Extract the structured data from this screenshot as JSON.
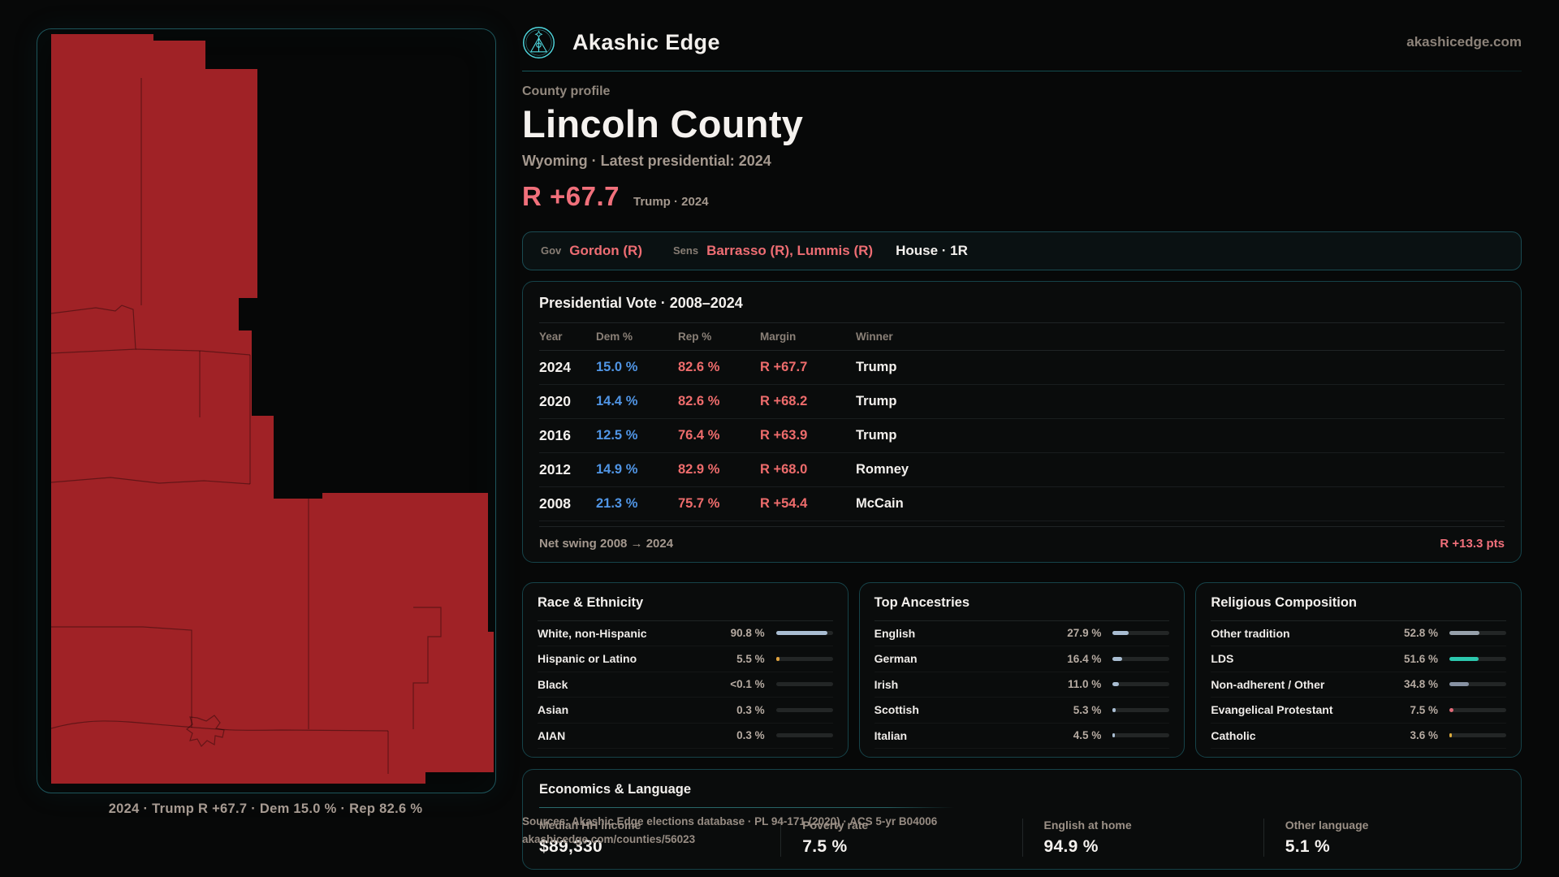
{
  "brand": {
    "name": "Akashic Edge",
    "domain_text": "akashicedge.com"
  },
  "page": {
    "kicker": "County profile",
    "title": "Lincoln County",
    "subtitle": "Wyoming · Latest presidential: 2024",
    "margin_value": "R +67.7",
    "margin_note": "Trump · 2024"
  },
  "officials": {
    "gov_label": "Gov",
    "gov_value": "Gordon (R)",
    "sens_label": "Sens",
    "sens_value": "Barrasso (R), Lummis (R)",
    "house_value": "House · 1R"
  },
  "presidential": {
    "title": "Presidential Vote · 2008–2024",
    "columns": [
      "Year",
      "Dem %",
      "Rep %",
      "Margin",
      "Winner"
    ],
    "rows": [
      {
        "year": "2024",
        "dem": "15.0 %",
        "rep": "82.6 %",
        "margin": "R +67.7",
        "winner": "Trump"
      },
      {
        "year": "2020",
        "dem": "14.4 %",
        "rep": "82.6 %",
        "margin": "R +68.2",
        "winner": "Trump"
      },
      {
        "year": "2016",
        "dem": "12.5 %",
        "rep": "76.4 %",
        "margin": "R +63.9",
        "winner": "Trump"
      },
      {
        "year": "2012",
        "dem": "14.9 %",
        "rep": "82.9 %",
        "margin": "R +68.0",
        "winner": "Romney"
      },
      {
        "year": "2008",
        "dem": "21.3 %",
        "rep": "75.7 %",
        "margin": "R +54.4",
        "winner": "McCain"
      }
    ],
    "net_swing_label": "Net swing 2008 → 2024",
    "net_swing_value": "R +13.3 pts"
  },
  "panels": [
    {
      "title": "Race & Ethnicity",
      "rows": [
        {
          "label": "White, non-Hispanic",
          "value": "90.8 %",
          "pct": 90.8,
          "color": "#a9bdd2"
        },
        {
          "label": "Hispanic or Latino",
          "value": "5.5 %",
          "pct": 5.5,
          "color": "#e0a23e"
        },
        {
          "label": "Black",
          "value": "<0.1 %",
          "pct": 0.05,
          "color": "#a9bdd2"
        },
        {
          "label": "Asian",
          "value": "0.3 %",
          "pct": 0.3,
          "color": "#a9bdd2"
        },
        {
          "label": "AIAN",
          "value": "0.3 %",
          "pct": 0.3,
          "color": "#a9bdd2"
        }
      ]
    },
    {
      "title": "Top Ancestries",
      "rows": [
        {
          "label": "English",
          "value": "27.9 %",
          "pct": 27.9,
          "color": "#a9bdd2"
        },
        {
          "label": "German",
          "value": "16.4 %",
          "pct": 16.4,
          "color": "#a9bdd2"
        },
        {
          "label": "Irish",
          "value": "11.0 %",
          "pct": 11.0,
          "color": "#a9bdd2"
        },
        {
          "label": "Scottish",
          "value": "5.3 %",
          "pct": 5.3,
          "color": "#a9bdd2"
        },
        {
          "label": "Italian",
          "value": "4.5 %",
          "pct": 4.5,
          "color": "#a9bdd2"
        }
      ]
    },
    {
      "title": "Religious Composition",
      "rows": [
        {
          "label": "Other tradition",
          "value": "52.8 %",
          "pct": 52.8,
          "color": "#97a1ab"
        },
        {
          "label": "LDS",
          "value": "51.6 %",
          "pct": 51.6,
          "color": "#2cc8ae"
        },
        {
          "label": "Non-adherent / Other",
          "value": "34.8 %",
          "pct": 34.8,
          "color": "#8792a3"
        },
        {
          "label": "Evangelical Protestant",
          "value": "7.5 %",
          "pct": 7.5,
          "color": "#e06a78"
        },
        {
          "label": "Catholic",
          "value": "3.6 %",
          "pct": 3.6,
          "color": "#dcab3c"
        }
      ]
    }
  ],
  "economics": {
    "title": "Economics & Language",
    "stats": [
      {
        "label": "Median HH income",
        "value": "$89,330"
      },
      {
        "label": "Poverty rate",
        "value": "7.5 %"
      },
      {
        "label": "English at home",
        "value": "94.9 %"
      },
      {
        "label": "Other language",
        "value": "5.1 %"
      }
    ]
  },
  "map": {
    "fill": "#a02226",
    "caption": "2024 · Trump R +67.7 · Dem 15.0 % · Rep 82.6 %"
  },
  "sources": {
    "line1": "Sources: Akashic Edge elections database · PL 94-171 (2020) · ACS 5-yr B04006",
    "line2": "akashicedge.com/counties/56023"
  },
  "colors": {
    "dem_blue": "#5095e5",
    "rep_red": "#ee6c6c",
    "accent_red": "#f1707b",
    "accent_teal": "#4fd6dd"
  }
}
